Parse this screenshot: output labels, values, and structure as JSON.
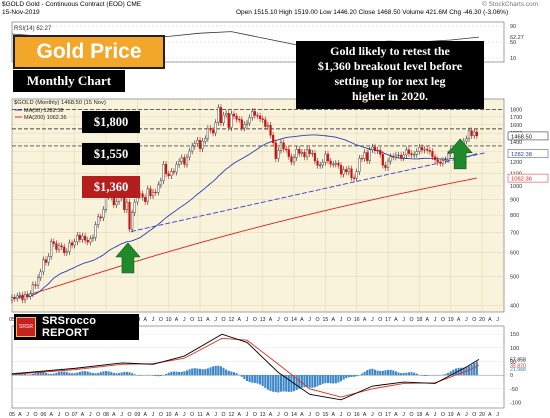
{
  "header": {
    "symbol_line": "$GOLD Gold - Continuous Contract (EOD) CME",
    "date": "15-Nov-2019",
    "ohlc": "Open 1515.10  High 1519.00  Low 1446.20  Close 1468.50  Volume 421.6M  Chg -46.30 (-3.06%)",
    "ohlc_arrow": "▼",
    "watermark": "© StockCharts.com"
  },
  "overlays": {
    "title": "Gold Price",
    "subtitle": "Monthly Chart",
    "callout_lines": [
      "Gold likely to retest the",
      "$1,360 breakout level before",
      "setting up for next leg",
      "higher in 2020."
    ],
    "levels": [
      {
        "label": "$1,800",
        "value": 1800,
        "color": "#000000"
      },
      {
        "label": "$1,550",
        "value": 1550,
        "color": "#000000"
      },
      {
        "label": "$1,360",
        "value": 1360,
        "color": "#b41e1e"
      }
    ],
    "logo_lines": [
      "SRSrocco",
      "REPORT"
    ],
    "logo_emblem": "SRSR"
  },
  "colors": {
    "up_candle": "#ffffff",
    "down_candle": "#cc1111",
    "ma50": "#2a3fb3",
    "ma200": "#dd2222",
    "trend": "#3a3ad8",
    "arrow": "#1f8a2a",
    "plot_bg": "#faf3dc",
    "macd_line": "#000000",
    "macd_signal": "#e03020",
    "macd_hist": "#3a86c8"
  },
  "chart_data": [
    {
      "type": "line",
      "title": "RSI(14) 62.27",
      "y_ticks": [
        10,
        50,
        90
      ],
      "ylim": [
        0,
        100
      ],
      "last_value": 62.27,
      "x": [
        2005,
        2006,
        2007,
        2008,
        2009,
        2010,
        2011,
        2012,
        2013,
        2014,
        2015,
        2016,
        2017,
        2018,
        2019,
        2019.9
      ],
      "values": [
        70,
        64,
        66,
        60,
        58,
        64,
        72,
        76,
        60,
        44,
        48,
        45,
        52,
        50,
        55,
        62.27
      ]
    },
    {
      "type": "candlestick",
      "title": "$GOLD (Monthly) 1468.50 (15 Nov)",
      "legend": [
        "MA(50) 1282.38",
        "MA(200) 1062.36"
      ],
      "y_ticks": [
        400,
        500,
        600,
        700,
        800,
        900,
        1000,
        1100,
        1200,
        1300,
        1400,
        1500,
        1600,
        1700,
        1800
      ],
      "ylim": [
        380,
        1950
      ],
      "x_ticks": [
        "05",
        "A",
        "J",
        "O",
        "06",
        "A",
        "J",
        "O",
        "07",
        "A",
        "J",
        "O",
        "08",
        "A",
        "J",
        "O",
        "09",
        "A",
        "J",
        "O",
        "10",
        "A",
        "J",
        "O",
        "11",
        "A",
        "J",
        "O",
        "12",
        "A",
        "J",
        "O",
        "13",
        "A",
        "J",
        "O",
        "14",
        "A",
        "J",
        "O",
        "15",
        "A",
        "J",
        "O",
        "16",
        "A",
        "J",
        "O",
        "17",
        "A",
        "J",
        "O",
        "18",
        "A",
        "J",
        "O",
        "19",
        "A",
        "J",
        "O",
        "20",
        "A",
        "J"
      ],
      "last_price": 1468.5,
      "last_labels": [
        "1468.50",
        "1282.38",
        "1062.36"
      ],
      "ma50_last": 1282.38,
      "ma200_last": 1062.36,
      "horizontal_levels": [
        1800,
        1550,
        1360
      ],
      "trendline": {
        "x": [
          2008.8,
          2020.1
        ],
        "y": [
          705,
          1290
        ]
      },
      "arrows": [
        {
          "x": 2008.7,
          "y": 580
        },
        {
          "x": 2019.3,
          "y": 1290
        }
      ],
      "monthly_close": {
        "2005": [
          425,
          422,
          430,
          433,
          417,
          435,
          429,
          437,
          469,
          465,
          495,
          517
        ],
        "2006": [
          568,
          556,
          582,
          652,
          643,
          614,
          632,
          626,
          599,
          604,
          646,
          635
        ],
        "2007": [
          651,
          685,
          663,
          681,
          659,
          650,
          667,
          673,
          743,
          789,
          783,
          836
        ],
        "2008": [
          923,
          971,
          917,
          865,
          887,
          928,
          912,
          833,
          884,
          718,
          814,
          884
        ],
        "2009": [
          928,
          942,
          916,
          887,
          979,
          927,
          954,
          953,
          1008,
          1040,
          1182,
          1097
        ],
        "2010": [
          1082,
          1118,
          1113,
          1180,
          1207,
          1244,
          1181,
          1249,
          1308,
          1359,
          1386,
          1421
        ],
        "2011": [
          1332,
          1411,
          1439,
          1556,
          1536,
          1502,
          1628,
          1828,
          1624,
          1725,
          1746,
          1566
        ],
        "2012": [
          1738,
          1710,
          1669,
          1664,
          1561,
          1604,
          1622,
          1692,
          1773,
          1719,
          1713,
          1675
        ],
        "2013": [
          1663,
          1578,
          1595,
          1476,
          1393,
          1234,
          1313,
          1395,
          1327,
          1323,
          1253,
          1202
        ],
        "2014": [
          1244,
          1326,
          1284,
          1296,
          1250,
          1322,
          1282,
          1286,
          1211,
          1171,
          1175,
          1199
        ],
        "2015": [
          1278,
          1212,
          1183,
          1183,
          1190,
          1172,
          1095,
          1135,
          1114,
          1141,
          1065,
          1061
        ],
        "2016": [
          1116,
          1238,
          1235,
          1293,
          1215,
          1320,
          1349,
          1311,
          1317,
          1275,
          1173,
          1151
        ],
        "2017": [
          1211,
          1253,
          1249,
          1268,
          1268,
          1242,
          1269,
          1321,
          1283,
          1270,
          1275,
          1303
        ],
        "2018": [
          1345,
          1318,
          1325,
          1315,
          1305,
          1252,
          1223,
          1201,
          1191,
          1215,
          1222,
          1281
        ],
        "2019": [
          1319,
          1316,
          1298,
          1284,
          1305,
          1412,
          1437,
          1529,
          1472,
          1514,
          1468.5
        ]
      }
    },
    {
      "type": "line",
      "title": "MACD(12,26,9) 57.858, 35.870, 21.988",
      "series": [
        {
          "name": "MACD",
          "x": [
            2005,
            2007,
            2008.5,
            2009.5,
            2010.5,
            2011.7,
            2012.5,
            2013.5,
            2014.5,
            2015.5,
            2016.5,
            2017.5,
            2018.5,
            2019.5,
            2019.9
          ],
          "values": [
            5,
            25,
            45,
            40,
            70,
            150,
            120,
            10,
            -70,
            -90,
            -40,
            -25,
            -30,
            30,
            57.858
          ]
        },
        {
          "name": "Signal",
          "x": [
            2005,
            2007,
            2008.5,
            2009.5,
            2010.5,
            2011.7,
            2012.5,
            2013.5,
            2014.5,
            2015.5,
            2016.5,
            2017.5,
            2018.5,
            2019.5,
            2019.9
          ],
          "values": [
            3,
            20,
            40,
            42,
            62,
            135,
            128,
            40,
            -50,
            -80,
            -50,
            -30,
            -28,
            15,
            35.87
          ]
        }
      ],
      "histogram_last": 21.988,
      "y_ticks": [
        -100,
        -50,
        0,
        50,
        100,
        150
      ],
      "ylim": [
        -120,
        180
      ]
    }
  ]
}
